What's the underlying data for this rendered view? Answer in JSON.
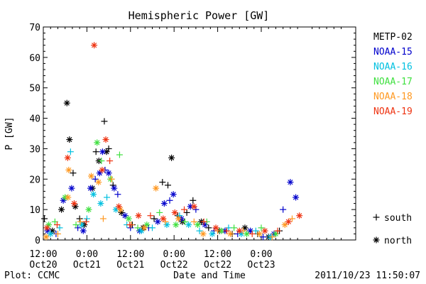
{
  "chart_data": {
    "type": "scatter",
    "title": "Hemispheric Power [GW]",
    "ylabel": "P [GW]",
    "xlabel": "Date and Time",
    "footer_left": "Plot: CCMC",
    "footer_right": "2011/10/23 11:50:07",
    "ylim": [
      0,
      70
    ],
    "yticks": [
      0,
      10,
      20,
      30,
      40,
      50,
      60,
      70
    ],
    "xlim": [
      0,
      86
    ],
    "xticks": [
      {
        "hour": 0,
        "time": "12:00",
        "date": "Oct20"
      },
      {
        "hour": 12,
        "time": "0:00",
        "date": "Oct21"
      },
      {
        "hour": 24,
        "time": "12:00",
        "date": "Oct21"
      },
      {
        "hour": 36,
        "time": "0:00",
        "date": "Oct22"
      },
      {
        "hour": 48,
        "time": "12:00",
        "date": "Oct22"
      },
      {
        "hour": 60,
        "time": "0:00",
        "date": "Oct23"
      }
    ],
    "grid": false,
    "legend_position": "right",
    "series": [
      {
        "name": "METP-02",
        "color": "#000000",
        "points": [
          {
            "x": 0.3,
            "y": 7,
            "m": "+"
          },
          {
            "x": 2.5,
            "y": 3,
            "m": "*"
          },
          {
            "x": 5,
            "y": 10,
            "m": "*"
          },
          {
            "x": 6.5,
            "y": 45,
            "m": "*"
          },
          {
            "x": 7.2,
            "y": 33,
            "m": "*"
          },
          {
            "x": 8.2,
            "y": 22,
            "m": "+"
          },
          {
            "x": 8.8,
            "y": 11,
            "m": "*"
          },
          {
            "x": 10,
            "y": 7,
            "m": "+"
          },
          {
            "x": 11.3,
            "y": 5,
            "m": "*"
          },
          {
            "x": 13.5,
            "y": 17,
            "m": "*"
          },
          {
            "x": 14.5,
            "y": 29,
            "m": "+"
          },
          {
            "x": 15.3,
            "y": 26,
            "m": "*"
          },
          {
            "x": 16.8,
            "y": 39,
            "m": "+"
          },
          {
            "x": 17.4,
            "y": 29,
            "m": "*"
          },
          {
            "x": 18,
            "y": 30,
            "m": "+"
          },
          {
            "x": 19.2,
            "y": 18,
            "m": "+"
          },
          {
            "x": 21.5,
            "y": 9,
            "m": "*"
          },
          {
            "x": 24.5,
            "y": 5,
            "m": "+"
          },
          {
            "x": 27.5,
            "y": 4,
            "m": "*"
          },
          {
            "x": 30.5,
            "y": 7,
            "m": "+"
          },
          {
            "x": 32.8,
            "y": 19,
            "m": "+"
          },
          {
            "x": 34.3,
            "y": 18,
            "m": "+"
          },
          {
            "x": 35.3,
            "y": 27,
            "m": "*"
          },
          {
            "x": 37,
            "y": 8,
            "m": "+"
          },
          {
            "x": 38.3,
            "y": 6,
            "m": "*"
          },
          {
            "x": 39.5,
            "y": 9,
            "m": "+"
          },
          {
            "x": 41.2,
            "y": 13,
            "m": "+"
          },
          {
            "x": 43.5,
            "y": 6,
            "m": "*"
          },
          {
            "x": 45.5,
            "y": 4,
            "m": "+"
          },
          {
            "x": 48.5,
            "y": 3,
            "m": "*"
          },
          {
            "x": 52,
            "y": 2,
            "m": "+"
          },
          {
            "x": 55.5,
            "y": 4,
            "m": "*"
          },
          {
            "x": 59,
            "y": 2,
            "m": "+"
          },
          {
            "x": 62,
            "y": 1,
            "m": "*"
          },
          {
            "x": 65,
            "y": 3,
            "m": "+"
          }
        ]
      },
      {
        "name": "NOAA-15",
        "color": "#0000cc",
        "points": [
          {
            "x": 1.2,
            "y": 3,
            "m": "*"
          },
          {
            "x": 3.5,
            "y": 2,
            "m": "+"
          },
          {
            "x": 5.5,
            "y": 13,
            "m": "*"
          },
          {
            "x": 7.8,
            "y": 17,
            "m": "*"
          },
          {
            "x": 9.5,
            "y": 4,
            "m": "+"
          },
          {
            "x": 11,
            "y": 3,
            "m": "*"
          },
          {
            "x": 13,
            "y": 17,
            "m": "*"
          },
          {
            "x": 14.3,
            "y": 20,
            "m": "+"
          },
          {
            "x": 15.5,
            "y": 22,
            "m": "*"
          },
          {
            "x": 16.3,
            "y": 29,
            "m": "*"
          },
          {
            "x": 17,
            "y": 23,
            "m": "+"
          },
          {
            "x": 18,
            "y": 22,
            "m": "*"
          },
          {
            "x": 19.5,
            "y": 17,
            "m": "*"
          },
          {
            "x": 20.5,
            "y": 15,
            "m": "+"
          },
          {
            "x": 22.5,
            "y": 8,
            "m": "*"
          },
          {
            "x": 24,
            "y": 4,
            "m": "+"
          },
          {
            "x": 26.5,
            "y": 3,
            "m": "*"
          },
          {
            "x": 29,
            "y": 4,
            "m": "+"
          },
          {
            "x": 31.5,
            "y": 6,
            "m": "*"
          },
          {
            "x": 33.3,
            "y": 12,
            "m": "*"
          },
          {
            "x": 34.8,
            "y": 13,
            "m": "+"
          },
          {
            "x": 35.8,
            "y": 15,
            "m": "*"
          },
          {
            "x": 38,
            "y": 7,
            "m": "*"
          },
          {
            "x": 40.5,
            "y": 11,
            "m": "*"
          },
          {
            "x": 42,
            "y": 10,
            "m": "+"
          },
          {
            "x": 44.5,
            "y": 5,
            "m": "*"
          },
          {
            "x": 47,
            "y": 3,
            "m": "+"
          },
          {
            "x": 50,
            "y": 3,
            "m": "*"
          },
          {
            "x": 53.5,
            "y": 2,
            "m": "+"
          },
          {
            "x": 57,
            "y": 3,
            "m": "*"
          },
          {
            "x": 60.5,
            "y": 1,
            "m": "+"
          },
          {
            "x": 63.5,
            "y": 2,
            "m": "*"
          },
          {
            "x": 66,
            "y": 10,
            "m": "+"
          },
          {
            "x": 68,
            "y": 19,
            "m": "*"
          },
          {
            "x": 69.5,
            "y": 14,
            "m": "*"
          }
        ]
      },
      {
        "name": "NOAA-16",
        "color": "#00c0e0",
        "points": [
          {
            "x": 2,
            "y": 2,
            "m": "*"
          },
          {
            "x": 4.5,
            "y": 4,
            "m": "+"
          },
          {
            "x": 7.5,
            "y": 29,
            "m": "+"
          },
          {
            "x": 10.5,
            "y": 5,
            "m": "*"
          },
          {
            "x": 12,
            "y": 7,
            "m": "+"
          },
          {
            "x": 13.8,
            "y": 15,
            "m": "*"
          },
          {
            "x": 15.8,
            "y": 12,
            "m": "*"
          },
          {
            "x": 17.5,
            "y": 14,
            "m": "+"
          },
          {
            "x": 20,
            "y": 10,
            "m": "*"
          },
          {
            "x": 23,
            "y": 5,
            "m": "+"
          },
          {
            "x": 27,
            "y": 3,
            "m": "*"
          },
          {
            "x": 30,
            "y": 4,
            "m": "+"
          },
          {
            "x": 34,
            "y": 5,
            "m": "*"
          },
          {
            "x": 37.5,
            "y": 8,
            "m": "+"
          },
          {
            "x": 40,
            "y": 5,
            "m": "*"
          },
          {
            "x": 43,
            "y": 3,
            "m": "+"
          },
          {
            "x": 46.5,
            "y": 2,
            "m": "*"
          },
          {
            "x": 51,
            "y": 4,
            "m": "+"
          },
          {
            "x": 54.5,
            "y": 2,
            "m": "*"
          },
          {
            "x": 58.5,
            "y": 3,
            "m": "+"
          },
          {
            "x": 62.5,
            "y": 1,
            "m": "*"
          }
        ]
      },
      {
        "name": "NOAA-17",
        "color": "#40e040",
        "points": [
          {
            "x": 1.5,
            "y": 5,
            "m": "*"
          },
          {
            "x": 3.2,
            "y": 6,
            "m": "+"
          },
          {
            "x": 6,
            "y": 14,
            "m": "*"
          },
          {
            "x": 9,
            "y": 5,
            "m": "+"
          },
          {
            "x": 12.5,
            "y": 10,
            "m": "*"
          },
          {
            "x": 14.8,
            "y": 32,
            "m": "*"
          },
          {
            "x": 16,
            "y": 26,
            "m": "+"
          },
          {
            "x": 18.5,
            "y": 20,
            "m": "*"
          },
          {
            "x": 21,
            "y": 28,
            "m": "+"
          },
          {
            "x": 23.5,
            "y": 7,
            "m": "*"
          },
          {
            "x": 26,
            "y": 4,
            "m": "+"
          },
          {
            "x": 28.5,
            "y": 5,
            "m": "*"
          },
          {
            "x": 32,
            "y": 9,
            "m": "+"
          },
          {
            "x": 36.5,
            "y": 5,
            "m": "*"
          },
          {
            "x": 39,
            "y": 6,
            "m": "+"
          },
          {
            "x": 42.5,
            "y": 5,
            "m": "*"
          },
          {
            "x": 45,
            "y": 6,
            "m": "+"
          },
          {
            "x": 49,
            "y": 3,
            "m": "*"
          },
          {
            "x": 52.5,
            "y": 4,
            "m": "+"
          },
          {
            "x": 56,
            "y": 2,
            "m": "*"
          },
          {
            "x": 60,
            "y": 4,
            "m": "+"
          },
          {
            "x": 64,
            "y": 2,
            "m": "*"
          }
        ]
      },
      {
        "name": "NOAA-18",
        "color": "#ff9922",
        "points": [
          {
            "x": 0.8,
            "y": 1,
            "m": "*"
          },
          {
            "x": 4,
            "y": 2,
            "m": "+"
          },
          {
            "x": 6.8,
            "y": 14,
            "m": "*"
          },
          {
            "x": 7,
            "y": 23,
            "m": "*"
          },
          {
            "x": 10.2,
            "y": 6,
            "m": "+"
          },
          {
            "x": 13.2,
            "y": 21,
            "m": "*"
          },
          {
            "x": 15.2,
            "y": 19,
            "m": "*"
          },
          {
            "x": 16.5,
            "y": 7,
            "m": "+"
          },
          {
            "x": 18.8,
            "y": 20,
            "m": "+"
          },
          {
            "x": 21.2,
            "y": 10,
            "m": "*"
          },
          {
            "x": 24.2,
            "y": 5,
            "m": "+"
          },
          {
            "x": 27.8,
            "y": 4,
            "m": "*"
          },
          {
            "x": 31,
            "y": 17,
            "m": "*"
          },
          {
            "x": 33.6,
            "y": 6,
            "m": "+"
          },
          {
            "x": 37.2,
            "y": 7,
            "m": "*"
          },
          {
            "x": 41.5,
            "y": 6,
            "m": "+"
          },
          {
            "x": 44,
            "y": 2,
            "m": "*"
          },
          {
            "x": 48,
            "y": 3,
            "m": "+"
          },
          {
            "x": 51.5,
            "y": 2,
            "m": "*"
          },
          {
            "x": 55,
            "y": 3,
            "m": "+"
          },
          {
            "x": 59.5,
            "y": 2,
            "m": "*"
          },
          {
            "x": 63,
            "y": 1,
            "m": "+"
          },
          {
            "x": 66.5,
            "y": 5,
            "m": "*"
          },
          {
            "x": 68.5,
            "y": 7,
            "m": "+"
          }
        ]
      },
      {
        "name": "NOAA-19",
        "color": "#ee3311",
        "points": [
          {
            "x": 1,
            "y": 4,
            "m": "*"
          },
          {
            "x": 3.8,
            "y": 5,
            "m": "+"
          },
          {
            "x": 6.7,
            "y": 27,
            "m": "*"
          },
          {
            "x": 8.5,
            "y": 12,
            "m": "*"
          },
          {
            "x": 11.8,
            "y": 6,
            "m": "+"
          },
          {
            "x": 14,
            "y": 64,
            "m": "*"
          },
          {
            "x": 16.2,
            "y": 23,
            "m": "*"
          },
          {
            "x": 17.2,
            "y": 33,
            "m": "*"
          },
          {
            "x": 18.3,
            "y": 26,
            "m": "+"
          },
          {
            "x": 20.8,
            "y": 11,
            "m": "*"
          },
          {
            "x": 23.8,
            "y": 5,
            "m": "+"
          },
          {
            "x": 26.2,
            "y": 8,
            "m": "*"
          },
          {
            "x": 29.5,
            "y": 8,
            "m": "+"
          },
          {
            "x": 33,
            "y": 7,
            "m": "*"
          },
          {
            "x": 36.2,
            "y": 9,
            "m": "*"
          },
          {
            "x": 38.8,
            "y": 10,
            "m": "+"
          },
          {
            "x": 41.5,
            "y": 11,
            "m": "*"
          },
          {
            "x": 44.2,
            "y": 6,
            "m": "+"
          },
          {
            "x": 47.5,
            "y": 4,
            "m": "*"
          },
          {
            "x": 50.5,
            "y": 3,
            "m": "+"
          },
          {
            "x": 54,
            "y": 3,
            "m": "*"
          },
          {
            "x": 57.5,
            "y": 2,
            "m": "+"
          },
          {
            "x": 61,
            "y": 3,
            "m": "*"
          },
          {
            "x": 64.5,
            "y": 3,
            "m": "+"
          },
          {
            "x": 67.5,
            "y": 6,
            "m": "*"
          },
          {
            "x": 70.5,
            "y": 8,
            "m": "*"
          }
        ]
      }
    ],
    "marker_legend": [
      {
        "symbol": "+",
        "label": "south"
      },
      {
        "symbol": "*",
        "label": "north"
      }
    ]
  }
}
